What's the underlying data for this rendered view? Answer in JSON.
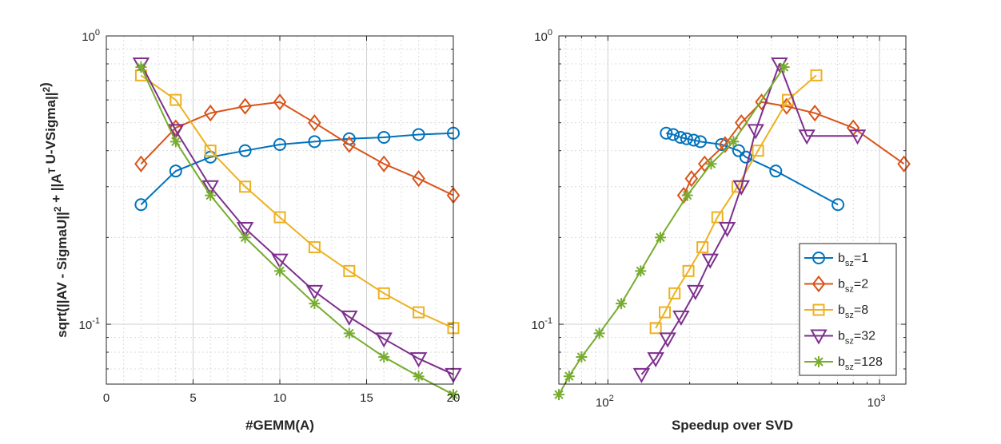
{
  "chart_data": [
    {
      "type": "line",
      "xlabel": "#GEMM(A)",
      "ylabel": "sqrt(||AV - SigmaU||^2 + ||A^T U-VSigma||^2)",
      "xscale": "linear",
      "yscale": "log",
      "xlim": [
        0,
        20
      ],
      "ylim": [
        0.062,
        1.0
      ],
      "xticks": [
        0,
        5,
        10,
        15,
        20
      ],
      "xtick_labels": [
        "0",
        "5",
        "10",
        "15",
        "20"
      ],
      "grid": true,
      "minor_grid": true,
      "series": [
        {
          "name": "b_sz=1",
          "color": "#0072BD",
          "marker": "circle",
          "x": [
            2,
            4,
            6,
            8,
            10,
            12,
            14,
            16,
            18,
            20
          ],
          "y": [
            0.26,
            0.34,
            0.38,
            0.4,
            0.42,
            0.43,
            0.44,
            0.445,
            0.455,
            0.46
          ]
        },
        {
          "name": "b_sz=2",
          "color": "#D95319",
          "marker": "diamond",
          "x": [
            2,
            4,
            6,
            8,
            10,
            12,
            14,
            16,
            18,
            20
          ],
          "y": [
            0.36,
            0.48,
            0.54,
            0.57,
            0.59,
            0.5,
            0.42,
            0.36,
            0.32,
            0.28
          ]
        },
        {
          "name": "b_sz=8",
          "color": "#EDB120",
          "marker": "square",
          "x": [
            2,
            4,
            6,
            8,
            10,
            12,
            14,
            16,
            18,
            20
          ],
          "y": [
            0.73,
            0.6,
            0.4,
            0.3,
            0.235,
            0.185,
            0.153,
            0.128,
            0.11,
            0.097
          ]
        },
        {
          "name": "b_sz=32",
          "color": "#7E2F8E",
          "marker": "triangle-down",
          "x": [
            2,
            4,
            6,
            8,
            10,
            12,
            14,
            16,
            18,
            20
          ],
          "y": [
            0.8,
            0.47,
            0.3,
            0.215,
            0.167,
            0.13,
            0.106,
            0.089,
            0.076,
            0.067
          ]
        },
        {
          "name": "b_sz=128",
          "color": "#77AC30",
          "marker": "asterisk",
          "x": [
            2,
            4,
            6,
            8,
            10,
            12,
            14,
            16,
            18,
            20
          ],
          "y": [
            0.78,
            0.43,
            0.28,
            0.2,
            0.153,
            0.118,
            0.093,
            0.077,
            0.066,
            0.057
          ]
        }
      ]
    },
    {
      "type": "line",
      "xlabel": "Speedup over SVD",
      "ylabel": "",
      "xscale": "log",
      "yscale": "log",
      "xlim": [
        66,
        1250
      ],
      "ylim": [
        0.062,
        1.0
      ],
      "xticks": [
        100,
        1000
      ],
      "grid": true,
      "minor_grid": true,
      "legend": "bottom-right",
      "series": [
        {
          "name": "b_sz=1",
          "color": "#0072BD",
          "marker": "circle",
          "x": [
            164,
            174,
            185,
            195,
            207,
            219,
            262,
            303,
            322,
            415,
            703
          ],
          "y": [
            0.46,
            0.455,
            0.445,
            0.44,
            0.435,
            0.43,
            0.42,
            0.4,
            0.38,
            0.34,
            0.26
          ]
        },
        {
          "name": "b_sz=2",
          "color": "#D95319",
          "marker": "diamond",
          "x": [
            190,
            203,
            227,
            270,
            310,
            368,
            455,
            578,
            800,
            1230
          ],
          "y": [
            0.28,
            0.32,
            0.36,
            0.42,
            0.5,
            0.59,
            0.57,
            0.54,
            0.48,
            0.36
          ]
        },
        {
          "name": "b_sz=8",
          "color": "#EDB120",
          "marker": "square",
          "x": [
            150,
            162,
            176,
            198,
            223,
            253,
            300,
            357,
            460,
            585
          ],
          "y": [
            0.097,
            0.11,
            0.128,
            0.153,
            0.185,
            0.235,
            0.3,
            0.4,
            0.6,
            0.73
          ]
        },
        {
          "name": "b_sz=32",
          "color": "#7E2F8E",
          "marker": "triangle-down",
          "x": [
            133,
            150,
            166,
            186,
            210,
            238,
            275,
            310,
            350,
            428,
            540,
            830
          ],
          "y": [
            0.067,
            0.076,
            0.089,
            0.106,
            0.13,
            0.167,
            0.215,
            0.3,
            0.47,
            0.8,
            0.45,
            0.45
          ]
        },
        {
          "name": "b_sz=128",
          "color": "#77AC30",
          "marker": "asterisk",
          "x": [
            66,
            72,
            80,
            93,
            112,
            132,
            156,
            196,
            240,
            290,
            445
          ],
          "y": [
            0.057,
            0.066,
            0.077,
            0.093,
            0.118,
            0.153,
            0.2,
            0.28,
            0.36,
            0.43,
            0.78
          ]
        }
      ]
    }
  ],
  "legend": {
    "entries": [
      {
        "base": "b",
        "sub": "sz",
        "value": "=1"
      },
      {
        "base": "b",
        "sub": "sz",
        "value": "=2"
      },
      {
        "base": "b",
        "sub": "sz",
        "value": "=8"
      },
      {
        "base": "b",
        "sub": "sz",
        "value": "=32"
      },
      {
        "base": "b",
        "sub": "sz",
        "value": "=128"
      }
    ]
  }
}
